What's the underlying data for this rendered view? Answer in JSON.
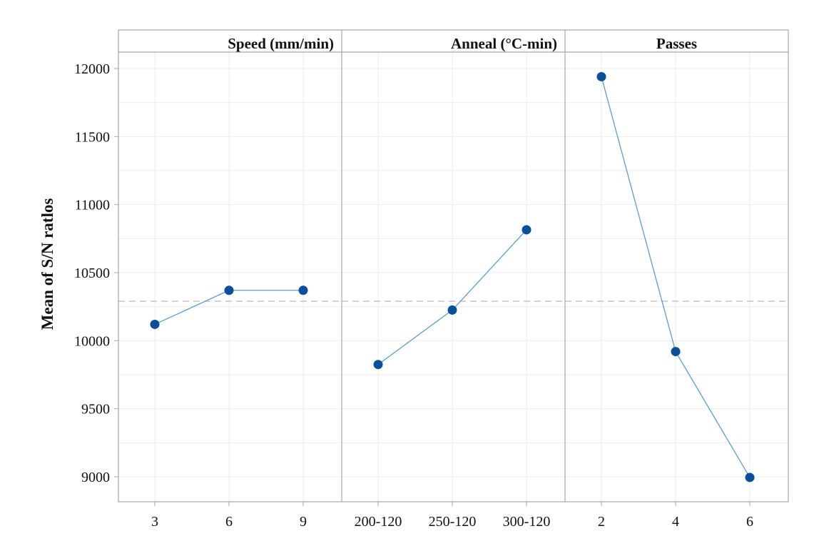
{
  "chart_data": {
    "type": "line",
    "ylabel": "Mean of S/N ratlos",
    "ylim": [
      8830,
      12200
    ],
    "yticks": [
      9000,
      9500,
      10000,
      10500,
      11000,
      11500,
      12000
    ],
    "grand_mean": 10290,
    "grid": true,
    "colors": {
      "line": "#5b9bd5",
      "marker": "#0a4f9c",
      "reference": "#c8c8c8",
      "grid": "#eeeeee",
      "frame": "#a6a6a6"
    },
    "panels": [
      {
        "title": "Speed (mm/min)",
        "categories": [
          "3",
          "6",
          "9"
        ],
        "values": [
          10120,
          10370,
          10370
        ]
      },
      {
        "title": "Anneal (°C-min)",
        "categories": [
          "200-120",
          "250-120",
          "300-120"
        ],
        "values": [
          9825,
          10225,
          10815
        ]
      },
      {
        "title": "Passes",
        "categories": [
          "2",
          "4",
          "6"
        ],
        "values": [
          11940,
          9920,
          8995
        ]
      }
    ]
  }
}
